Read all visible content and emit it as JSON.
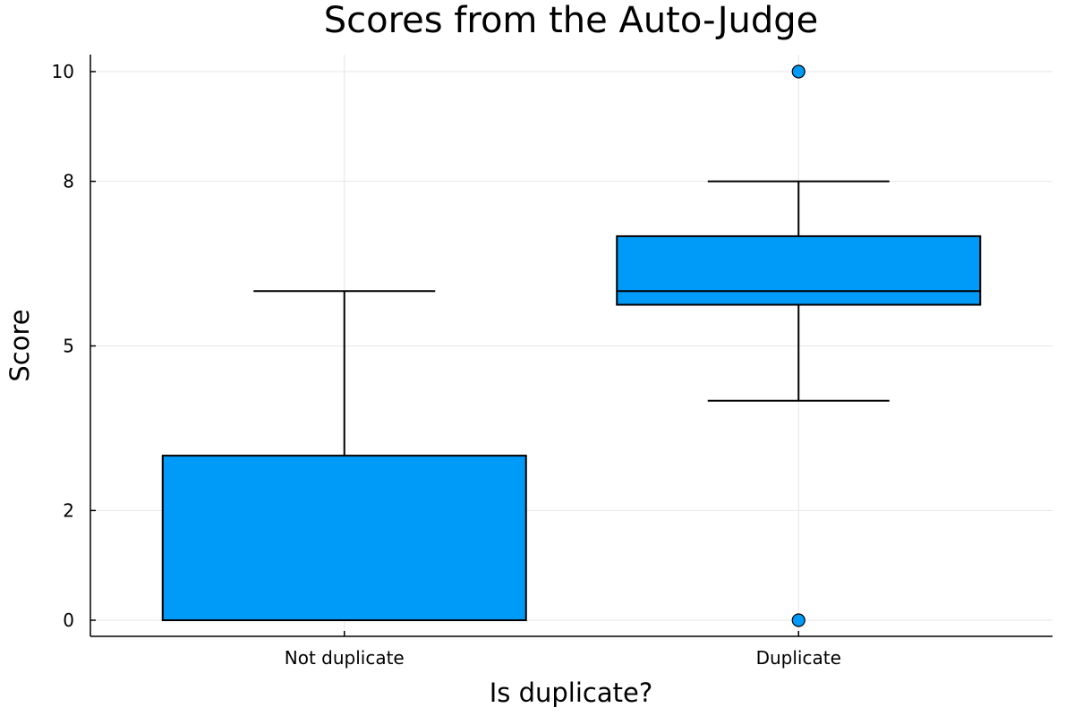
{
  "chart_data": {
    "type": "box",
    "title": "Scores from the Auto-Judge",
    "xlabel": "Is duplicate?",
    "ylabel": "Score",
    "ylim": [
      -0.3,
      10.3
    ],
    "yticks": [
      0,
      2,
      5,
      8,
      10
    ],
    "ytick_labels": [
      "0",
      "2",
      "5",
      "8",
      "10"
    ],
    "grid": true,
    "legend": "none",
    "box_color": "#009af9",
    "categories": [
      "Not duplicate",
      "Duplicate"
    ],
    "boxes": [
      {
        "category": "Not duplicate",
        "whisker_low": 0,
        "q1": 0,
        "median": 0,
        "q3": 3,
        "whisker_high": 6,
        "outliers": []
      },
      {
        "category": "Duplicate",
        "whisker_low": 4,
        "q1": 5.75,
        "median": 6,
        "q3": 7,
        "whisker_high": 8,
        "outliers": [
          10,
          0
        ]
      }
    ]
  }
}
